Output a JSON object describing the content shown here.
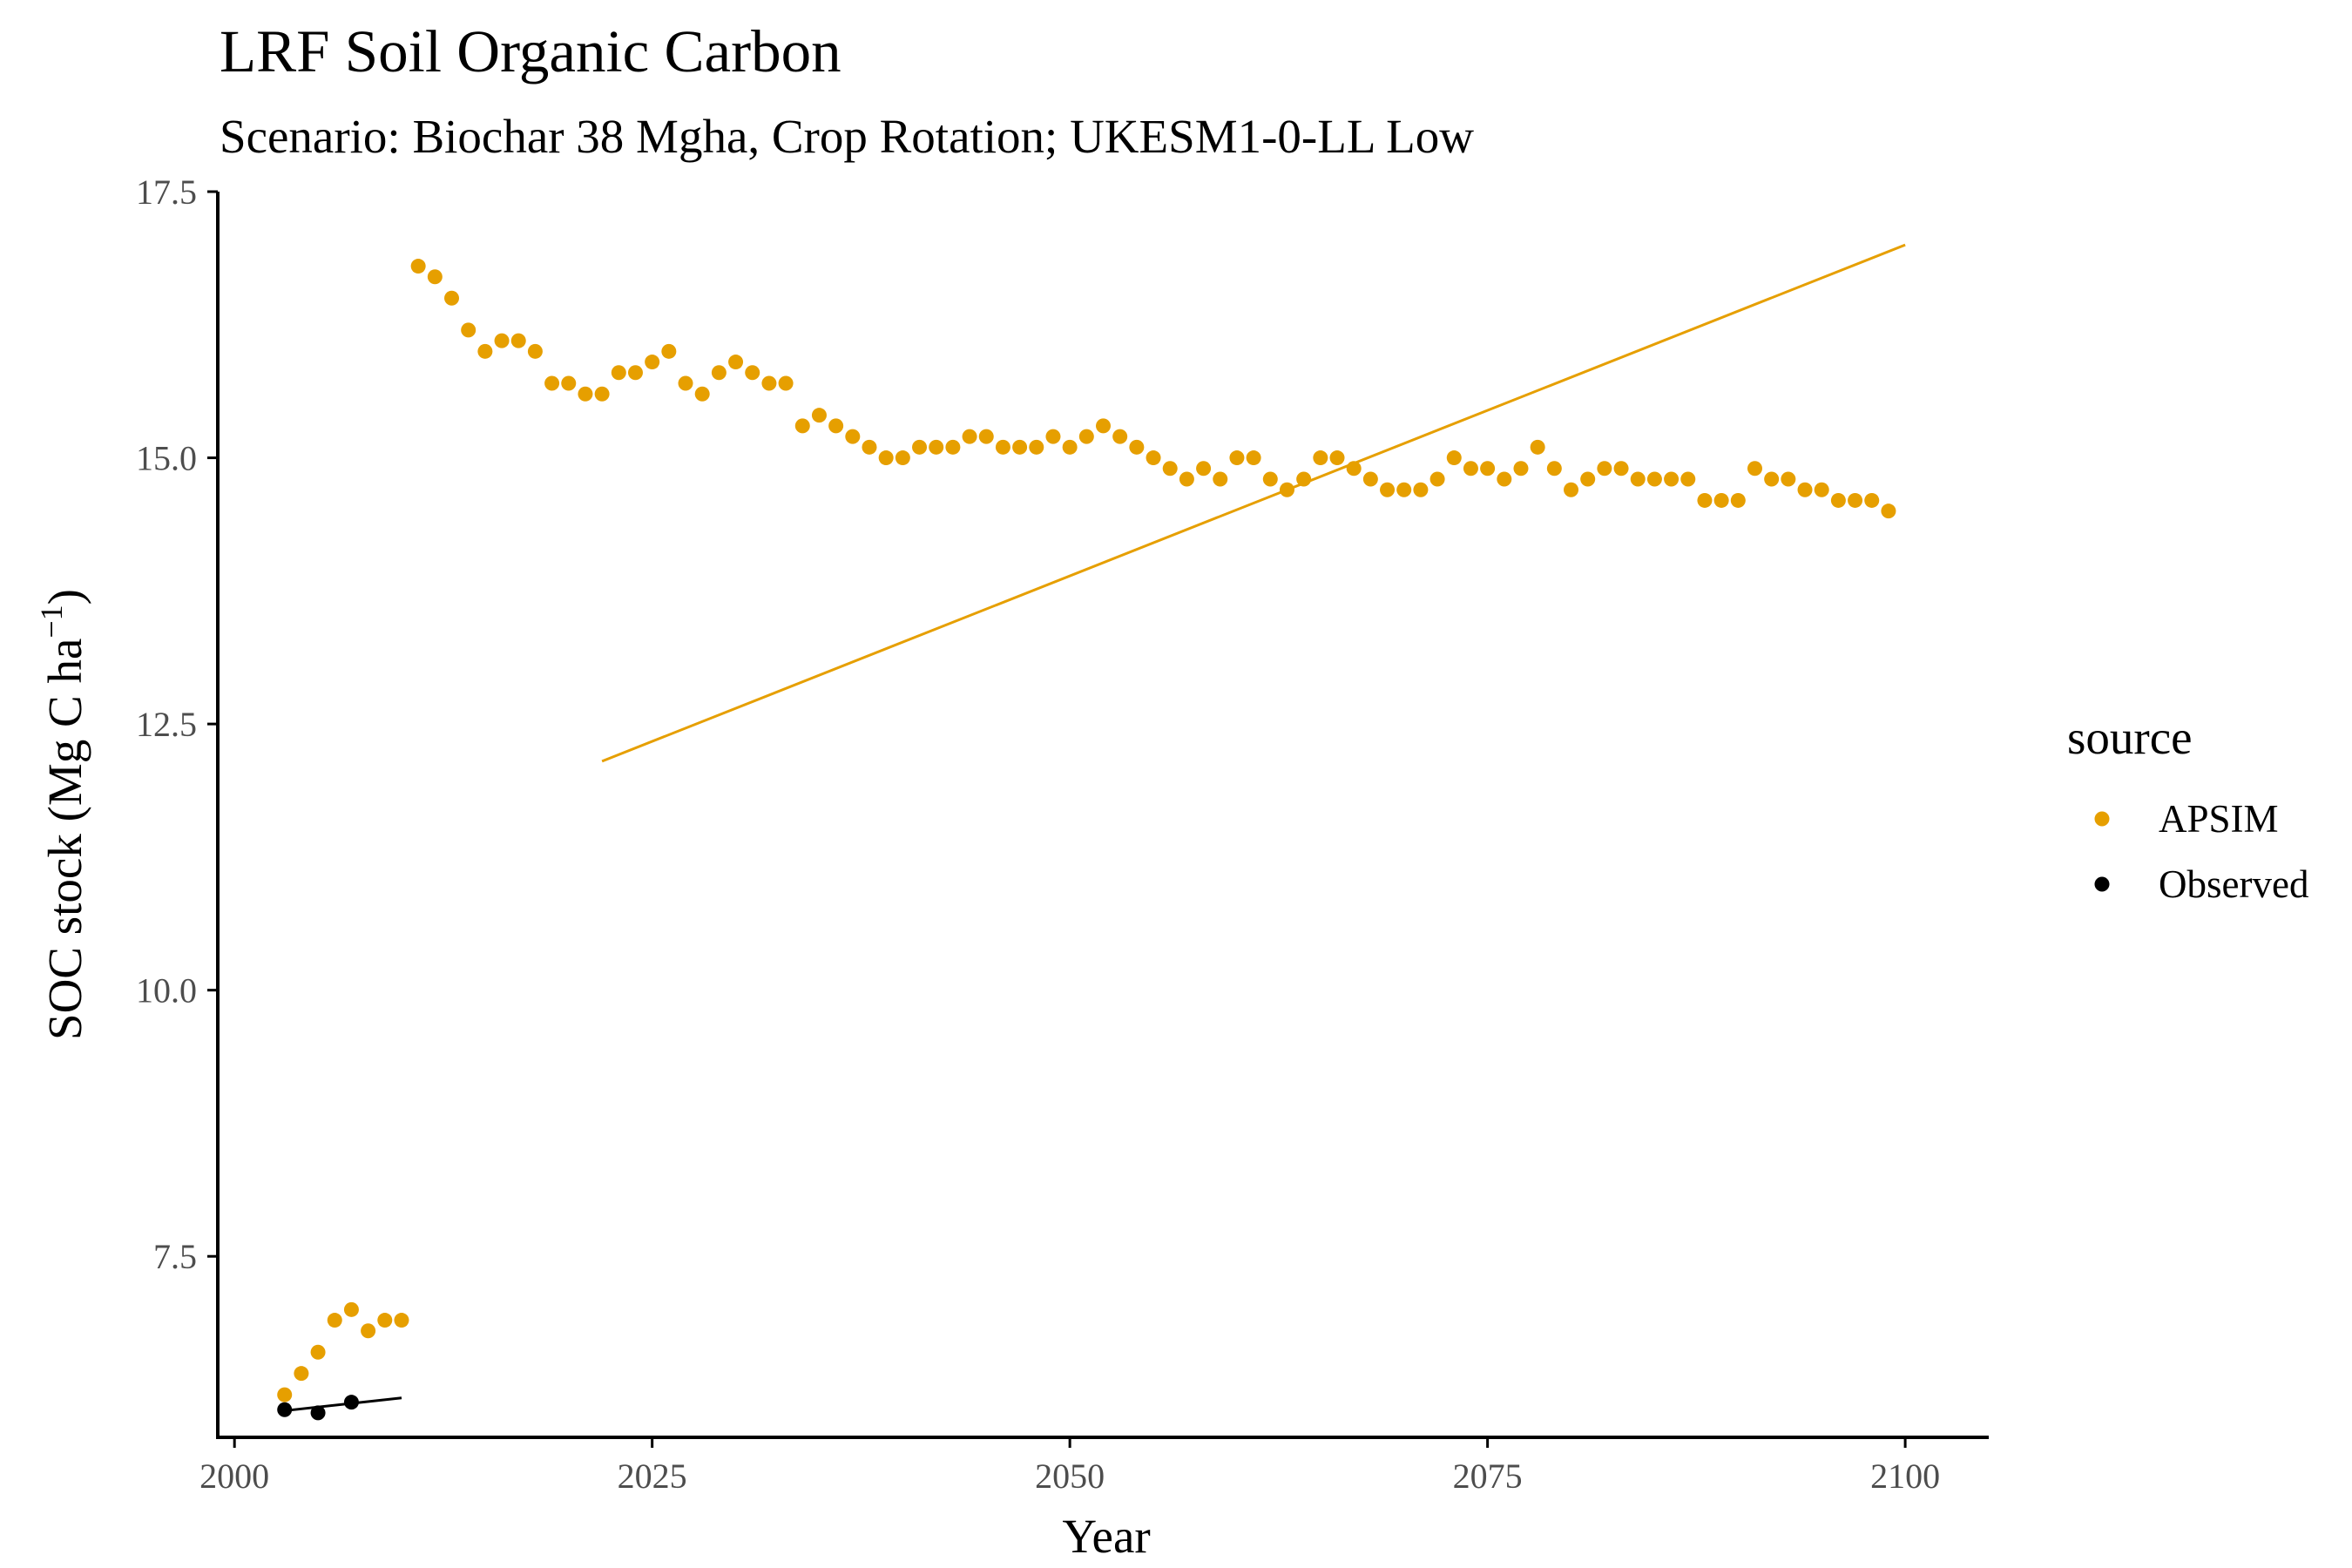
{
  "chart_data": {
    "type": "scatter",
    "title": "LRF Soil Organic Carbon",
    "subtitle": "Scenario: Biochar 38 Mgha, Crop Rotation; UKESM1-0-LL Low",
    "xlabel": "Year",
    "ylabel_main": "SOC stock (Mg C ha",
    "ylabel_sup": "−1",
    "ylabel_close": ")",
    "xlim": [
      1999,
      2105
    ],
    "ylim": [
      5.8,
      17.5
    ],
    "x_ticks": [
      2000,
      2025,
      2050,
      2075,
      2100
    ],
    "x_tick_labels": [
      "2000",
      "2025",
      "2050",
      "2075",
      "2100"
    ],
    "y_ticks": [
      7.5,
      10,
      12.5,
      15,
      17.5
    ],
    "y_tick_labels": [
      "7.5",
      "10.0",
      "12.5",
      "15.0",
      "17.5"
    ],
    "grid": false,
    "legend": {
      "title": "source",
      "position": "right",
      "entries": [
        "APSIM",
        "Observed"
      ]
    },
    "series": [
      {
        "name": "APSIM",
        "color": "#E69F00",
        "points": [
          [
            2003,
            6.2
          ],
          [
            2004,
            6.4
          ],
          [
            2005,
            6.6
          ],
          [
            2006,
            6.9
          ],
          [
            2007,
            7.0
          ],
          [
            2008,
            6.8
          ],
          [
            2009,
            6.9
          ],
          [
            2010,
            6.9
          ],
          [
            2011,
            16.8
          ],
          [
            2012,
            16.7
          ],
          [
            2013,
            16.5
          ],
          [
            2014,
            16.2
          ],
          [
            2015,
            16.0
          ],
          [
            2016,
            16.1
          ],
          [
            2017,
            16.1
          ],
          [
            2018,
            16.0
          ],
          [
            2019,
            15.7
          ],
          [
            2020,
            15.7
          ],
          [
            2021,
            15.6
          ],
          [
            2022,
            15.6
          ],
          [
            2023,
            15.8
          ],
          [
            2024,
            15.8
          ],
          [
            2025,
            15.9
          ],
          [
            2026,
            16.0
          ],
          [
            2027,
            15.7
          ],
          [
            2028,
            15.6
          ],
          [
            2029,
            15.8
          ],
          [
            2030,
            15.9
          ],
          [
            2031,
            15.8
          ],
          [
            2032,
            15.7
          ],
          [
            2033,
            15.7
          ],
          [
            2034,
            15.3
          ],
          [
            2035,
            15.4
          ],
          [
            2036,
            15.3
          ],
          [
            2037,
            15.2
          ],
          [
            2038,
            15.1
          ],
          [
            2039,
            15.0
          ],
          [
            2040,
            15.0
          ],
          [
            2041,
            15.1
          ],
          [
            2042,
            15.1
          ],
          [
            2043,
            15.1
          ],
          [
            2044,
            15.2
          ],
          [
            2045,
            15.2
          ],
          [
            2046,
            15.1
          ],
          [
            2047,
            15.1
          ],
          [
            2048,
            15.1
          ],
          [
            2049,
            15.2
          ],
          [
            2050,
            15.1
          ],
          [
            2051,
            15.2
          ],
          [
            2052,
            15.3
          ],
          [
            2053,
            15.2
          ],
          [
            2054,
            15.1
          ],
          [
            2055,
            15.0
          ],
          [
            2056,
            14.9
          ],
          [
            2057,
            14.8
          ],
          [
            2058,
            14.9
          ],
          [
            2059,
            14.8
          ],
          [
            2060,
            15.0
          ],
          [
            2061,
            15.0
          ],
          [
            2062,
            14.8
          ],
          [
            2063,
            14.7
          ],
          [
            2064,
            14.8
          ],
          [
            2065,
            15.0
          ],
          [
            2066,
            15.0
          ],
          [
            2067,
            14.9
          ],
          [
            2068,
            14.8
          ],
          [
            2069,
            14.7
          ],
          [
            2070,
            14.7
          ],
          [
            2071,
            14.7
          ],
          [
            2072,
            14.8
          ],
          [
            2073,
            15.0
          ],
          [
            2074,
            14.9
          ],
          [
            2075,
            14.9
          ],
          [
            2076,
            14.8
          ],
          [
            2077,
            14.9
          ],
          [
            2078,
            15.1
          ],
          [
            2079,
            14.9
          ],
          [
            2080,
            14.7
          ],
          [
            2081,
            14.8
          ],
          [
            2082,
            14.9
          ],
          [
            2083,
            14.9
          ],
          [
            2084,
            14.8
          ],
          [
            2085,
            14.8
          ],
          [
            2086,
            14.8
          ],
          [
            2087,
            14.8
          ],
          [
            2088,
            14.6
          ],
          [
            2089,
            14.6
          ],
          [
            2090,
            14.6
          ],
          [
            2091,
            14.9
          ],
          [
            2092,
            14.8
          ],
          [
            2093,
            14.8
          ],
          [
            2094,
            14.7
          ],
          [
            2095,
            14.7
          ],
          [
            2096,
            14.6
          ],
          [
            2097,
            14.6
          ],
          [
            2098,
            14.6
          ],
          [
            2099,
            14.5
          ]
        ],
        "trend": [
          [
            2022,
            12.15
          ],
          [
            2100,
            17.0
          ]
        ]
      },
      {
        "name": "Observed",
        "color": "#000000",
        "points": [
          [
            2003,
            6.06
          ],
          [
            2005,
            6.03
          ],
          [
            2007,
            6.13
          ]
        ],
        "trend": [
          [
            2003,
            6.05
          ],
          [
            2010,
            6.17
          ]
        ]
      }
    ]
  }
}
